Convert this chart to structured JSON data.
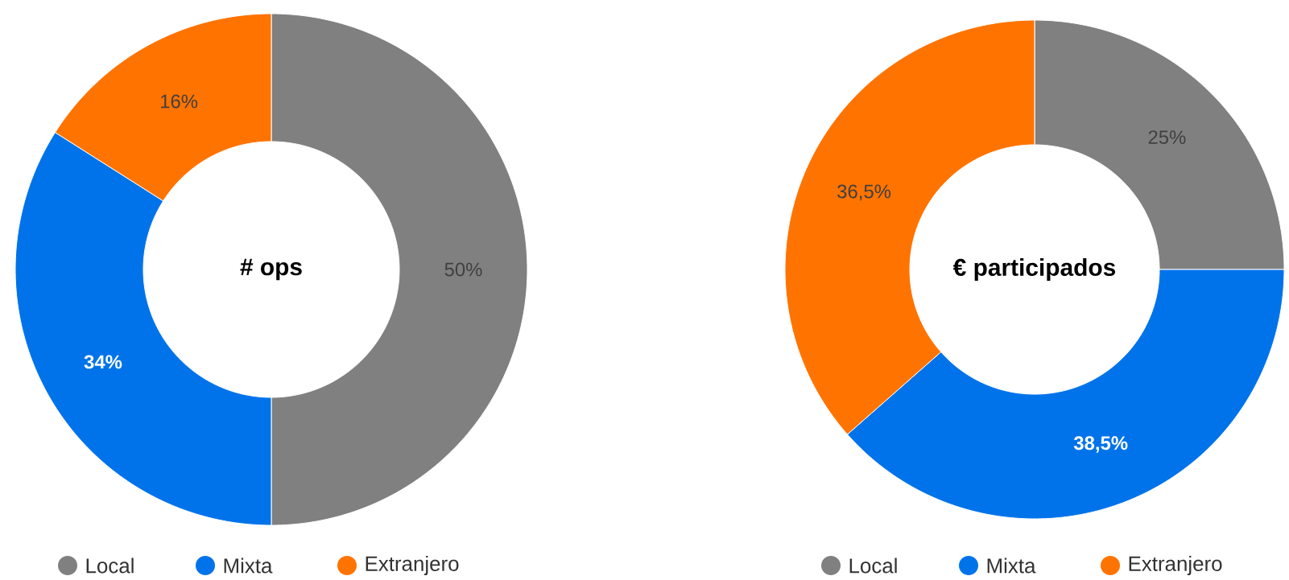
{
  "chart_data": [
    {
      "type": "donut",
      "title": "# ops",
      "categories": [
        "Local",
        "Mixta",
        "Extranjero"
      ],
      "values": [
        50,
        34,
        16
      ],
      "colors": [
        "#808080",
        "#0073ea",
        "#ff7300"
      ],
      "value_labels": [
        "50%",
        "34%",
        "16%"
      ],
      "legend": "bottom"
    },
    {
      "type": "donut",
      "title": "€ participados",
      "categories": [
        "Local",
        "Mixta",
        "Extranjero"
      ],
      "values": [
        25,
        38.5,
        36.5
      ],
      "colors": [
        "#808080",
        "#0073ea",
        "#ff7300"
      ],
      "value_labels": [
        "25%",
        "38,5%",
        "36,5%"
      ],
      "legend": "bottom"
    }
  ]
}
